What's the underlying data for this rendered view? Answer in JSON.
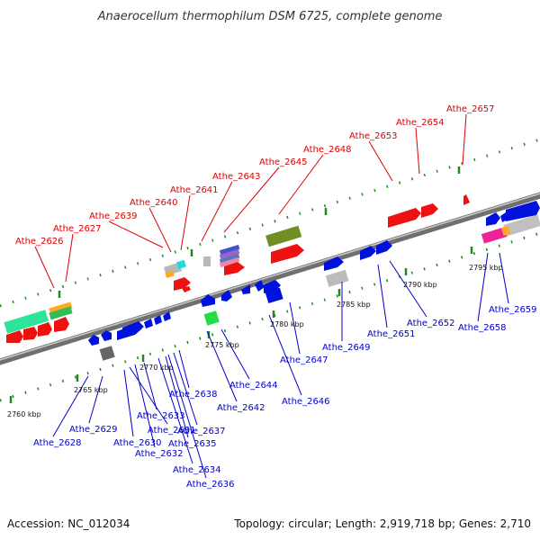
{
  "title": "Anaerocellum thermophilum DSM 6725, complete genome",
  "footer": {
    "accession": "Accession: NC_012034",
    "summary": "Topology: circular; Length: 2,919,718 bp; Genes: 2,710"
  },
  "colors": {
    "upper_label": "#dd0000",
    "lower_label": "#0000cc",
    "backbone": "#7a7a7a",
    "tick": "#1d8a1d"
  },
  "scale": [
    "2760 kbp",
    "2765 kbp",
    "2770 kbp",
    "2775 kbp",
    "2780 kbp",
    "2785 kbp",
    "2790 kbp",
    "2795 kbp"
  ],
  "upper_genes": [
    "Athe_2626",
    "Athe_2627",
    "Athe_2639",
    "Athe_2640",
    "Athe_2641",
    "Athe_2643",
    "Athe_2645",
    "Athe_2648",
    "Athe_2653",
    "Athe_2654",
    "Athe_2657"
  ],
  "lower_genes": [
    "Athe_2628",
    "Athe_2629",
    "Athe_2630",
    "Athe_2631",
    "Athe_2632",
    "Athe_2633",
    "Athe_2634",
    "Athe_2635",
    "Athe_2636",
    "Athe_2637",
    "Athe_2638",
    "Athe_2642",
    "Athe_2644",
    "Athe_2646",
    "Athe_2647",
    "Athe_2649",
    "Athe_2651",
    "Athe_2652",
    "Athe_2658",
    "Athe_2659"
  ]
}
